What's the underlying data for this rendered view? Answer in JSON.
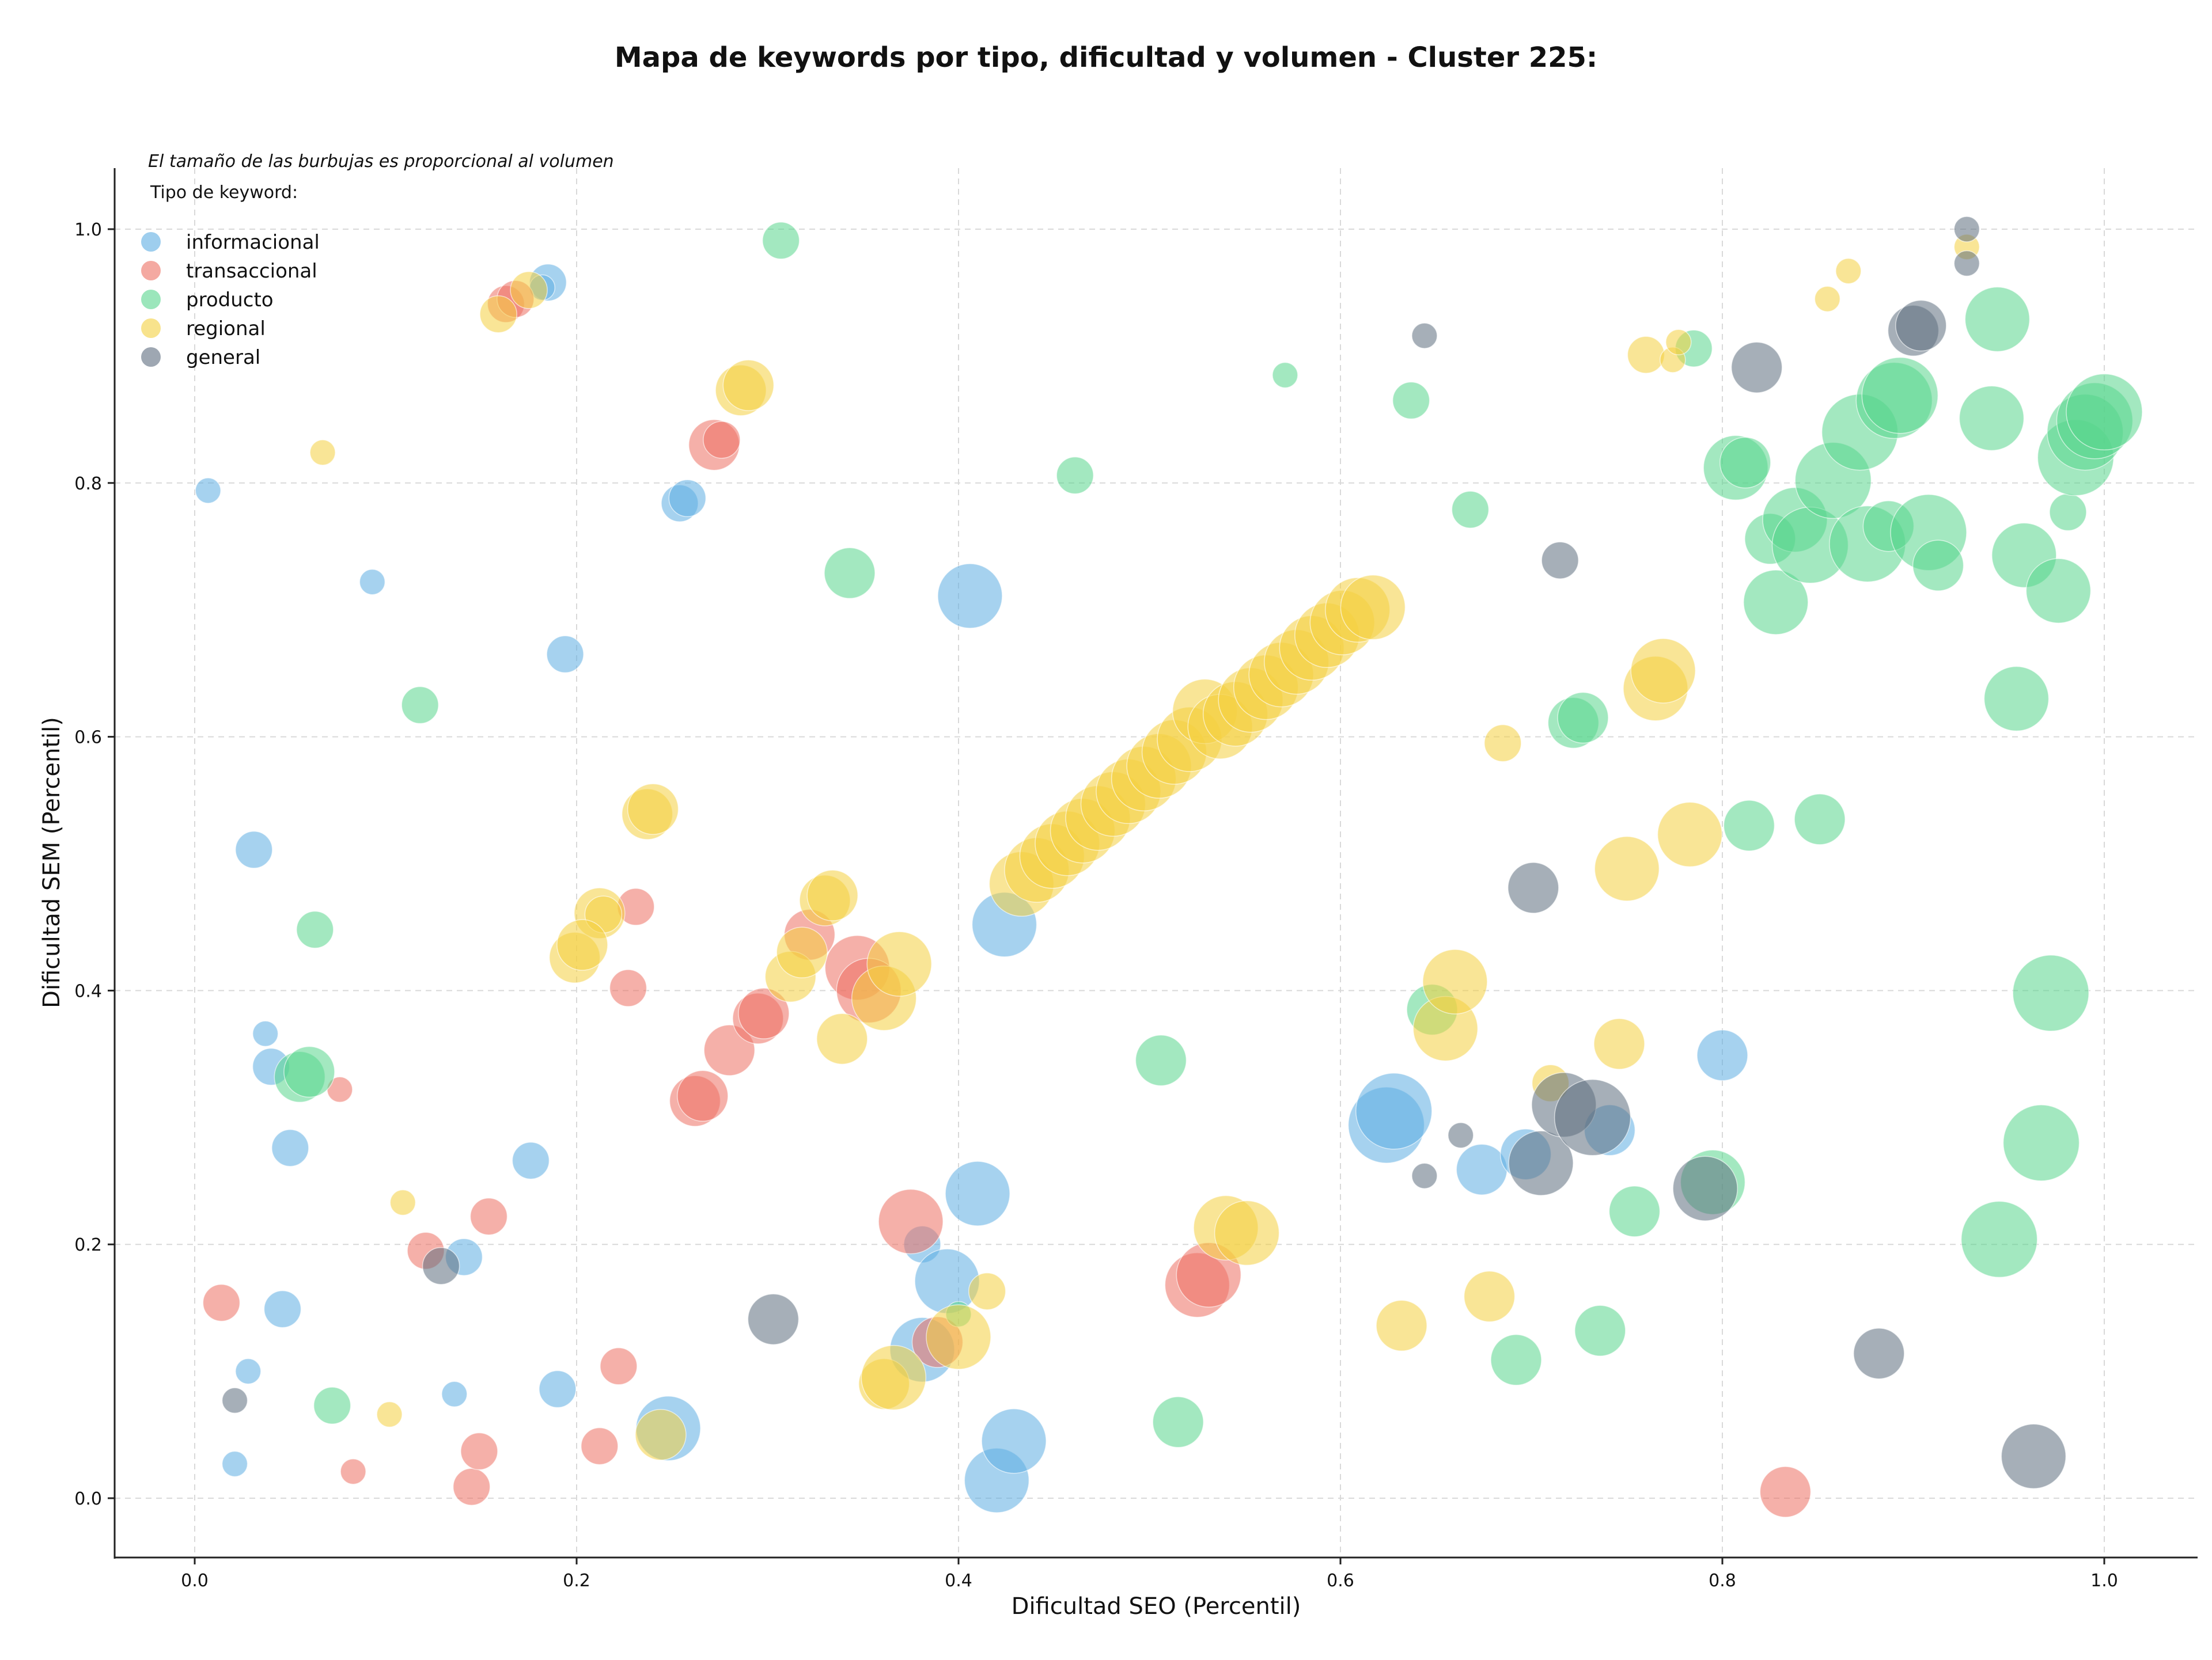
{
  "chart_data": {
    "type": "scatter",
    "title": "Mapa de keywords por tipo, dificultad y volumen - Cluster 225:",
    "xlabel": "Dificultad SEO (Percentil)",
    "ylabel": "Dificultad SEM (Percentil)",
    "xlim": [
      -0.04,
      1.05
    ],
    "ylim": [
      -0.045,
      1.05
    ],
    "xticks": [
      "0.0",
      "0.2",
      "0.4",
      "0.6",
      "0.8",
      "1.0"
    ],
    "yticks": [
      "0.0",
      "0.2",
      "0.4",
      "0.6",
      "0.8",
      "1.0"
    ],
    "grid": true,
    "legend_placement": "top-left",
    "note": "El tamaño de las burbujas es proporcional al volumen",
    "legend_title": "Tipo de keyword:",
    "series": [
      {
        "name": "informacional",
        "color": "#5dade2",
        "points": [
          [
            0.007,
            0.794,
            1
          ],
          [
            0.093,
            0.722,
            1
          ],
          [
            0.185,
            0.958,
            2
          ],
          [
            0.182,
            0.954,
            1
          ],
          [
            0.254,
            0.784,
            2
          ],
          [
            0.258,
            0.788,
            2
          ],
          [
            0.194,
            0.665,
            2
          ],
          [
            0.406,
            0.711,
            4
          ],
          [
            0.031,
            0.511,
            2
          ],
          [
            0.424,
            0.452,
            4
          ],
          [
            0.037,
            0.366,
            1
          ],
          [
            0.04,
            0.34,
            2
          ],
          [
            0.05,
            0.276,
            2
          ],
          [
            0.176,
            0.266,
            2
          ],
          [
            0.141,
            0.19,
            2
          ],
          [
            0.046,
            0.149,
            2
          ],
          [
            0.028,
            0.1,
            1
          ],
          [
            0.021,
            0.027,
            1
          ],
          [
            0.136,
            0.082,
            1
          ],
          [
            0.19,
            0.086,
            2
          ],
          [
            0.248,
            0.055,
            4
          ],
          [
            0.381,
            0.2,
            2
          ],
          [
            0.394,
            0.171,
            4
          ],
          [
            0.41,
            0.24,
            4
          ],
          [
            0.381,
            0.117,
            4
          ],
          [
            0.42,
            0.014,
            4
          ],
          [
            0.429,
            0.045,
            4
          ],
          [
            0.624,
            0.294,
            5
          ],
          [
            0.628,
            0.305,
            5
          ],
          [
            0.674,
            0.259,
            3
          ],
          [
            0.697,
            0.271,
            3
          ],
          [
            0.741,
            0.29,
            3
          ],
          [
            0.8,
            0.349,
            3
          ]
        ]
      },
      {
        "name": "transaccional",
        "color": "#ec7063",
        "points": [
          [
            0.163,
            0.941,
            2
          ],
          [
            0.168,
            0.945,
            2
          ],
          [
            0.272,
            0.83,
            3
          ],
          [
            0.276,
            0.834,
            2
          ],
          [
            0.231,
            0.466,
            2
          ],
          [
            0.227,
            0.402,
            2
          ],
          [
            0.076,
            0.322,
            1
          ],
          [
            0.154,
            0.222,
            2
          ],
          [
            0.121,
            0.195,
            2
          ],
          [
            0.014,
            0.154,
            2
          ],
          [
            0.083,
            0.021,
            1
          ],
          [
            0.145,
            0.009,
            2
          ],
          [
            0.149,
            0.037,
            2
          ],
          [
            0.212,
            0.041,
            2
          ],
          [
            0.222,
            0.104,
            2
          ],
          [
            0.262,
            0.313,
            3
          ],
          [
            0.266,
            0.317,
            3
          ],
          [
            0.28,
            0.353,
            3
          ],
          [
            0.295,
            0.378,
            3
          ],
          [
            0.298,
            0.382,
            3
          ],
          [
            0.322,
            0.444,
            3
          ],
          [
            0.347,
            0.418,
            4
          ],
          [
            0.353,
            0.4,
            4
          ],
          [
            0.375,
            0.218,
            4
          ],
          [
            0.389,
            0.123,
            3
          ],
          [
            0.525,
            0.168,
            4
          ],
          [
            0.531,
            0.176,
            4
          ],
          [
            0.833,
            0.005,
            3
          ]
        ]
      },
      {
        "name": "producto",
        "color": "#58d68d",
        "points": [
          [
            0.307,
            0.991,
            2
          ],
          [
            0.343,
            0.729,
            3
          ],
          [
            0.461,
            0.806,
            2
          ],
          [
            0.571,
            0.885,
            1
          ],
          [
            0.637,
            0.865,
            2
          ],
          [
            0.668,
            0.779,
            2
          ],
          [
            0.118,
            0.625,
            2
          ],
          [
            0.063,
            0.448,
            2
          ],
          [
            0.055,
            0.332,
            3
          ],
          [
            0.06,
            0.336,
            3
          ],
          [
            0.072,
            0.073,
            2
          ],
          [
            0.4,
            0.145,
            1
          ],
          [
            0.506,
            0.345,
            3
          ],
          [
            0.515,
            0.06,
            3
          ],
          [
            0.648,
            0.385,
            3
          ],
          [
            0.692,
            0.109,
            3
          ],
          [
            0.722,
            0.611,
            3
          ],
          [
            0.727,
            0.615,
            3
          ],
          [
            0.736,
            0.132,
            3
          ],
          [
            0.754,
            0.226,
            3
          ],
          [
            0.785,
            0.906,
            2
          ],
          [
            0.795,
            0.249,
            4
          ],
          [
            0.807,
            0.812,
            4
          ],
          [
            0.812,
            0.816,
            3
          ],
          [
            0.814,
            0.53,
            3
          ],
          [
            0.825,
            0.756,
            3
          ],
          [
            0.828,
            0.706,
            4
          ],
          [
            0.838,
            0.771,
            4
          ],
          [
            0.846,
            0.751,
            5
          ],
          [
            0.851,
            0.535,
            3
          ],
          [
            0.858,
            0.802,
            5
          ],
          [
            0.872,
            0.84,
            5
          ],
          [
            0.876,
            0.752,
            5
          ],
          [
            0.887,
            0.766,
            3
          ],
          [
            0.89,
            0.865,
            5
          ],
          [
            0.893,
            0.869,
            5
          ],
          [
            0.908,
            0.761,
            5
          ],
          [
            0.913,
            0.735,
            3
          ],
          [
            0.941,
            0.851,
            4
          ],
          [
            0.944,
            0.929,
            4
          ],
          [
            0.945,
            0.204,
            5
          ],
          [
            0.954,
            0.63,
            4
          ],
          [
            0.958,
            0.743,
            4
          ],
          [
            0.967,
            0.28,
            5
          ],
          [
            0.972,
            0.398,
            5
          ],
          [
            0.976,
            0.715,
            4
          ],
          [
            0.981,
            0.777,
            2
          ],
          [
            0.985,
            0.82,
            5
          ],
          [
            0.99,
            0.84,
            5
          ],
          [
            0.995,
            0.849,
            5
          ],
          [
            1.0,
            0.856,
            5
          ]
        ]
      },
      {
        "name": "regional",
        "color": "#f4d03f",
        "points": [
          [
            0.067,
            0.824,
            1
          ],
          [
            0.159,
            0.933,
            2
          ],
          [
            0.175,
            0.952,
            2
          ],
          [
            0.286,
            0.873,
            3
          ],
          [
            0.29,
            0.877,
            3
          ],
          [
            0.237,
            0.539,
            3
          ],
          [
            0.24,
            0.543,
            3
          ],
          [
            0.212,
            0.461,
            3
          ],
          [
            0.214,
            0.46,
            2
          ],
          [
            0.199,
            0.426,
            3
          ],
          [
            0.203,
            0.436,
            3
          ],
          [
            0.109,
            0.233,
            1
          ],
          [
            0.102,
            0.066,
            1
          ],
          [
            0.244,
            0.05,
            3
          ],
          [
            0.312,
            0.411,
            3
          ],
          [
            0.318,
            0.43,
            3
          ],
          [
            0.33,
            0.471,
            3
          ],
          [
            0.334,
            0.475,
            3
          ],
          [
            0.339,
            0.362,
            3
          ],
          [
            0.361,
            0.394,
            4
          ],
          [
            0.369,
            0.421,
            4
          ],
          [
            0.361,
            0.09,
            3
          ],
          [
            0.366,
            0.095,
            4
          ],
          [
            0.4,
            0.127,
            4
          ],
          [
            0.415,
            0.163,
            2
          ],
          [
            0.433,
            0.484,
            4
          ],
          [
            0.441,
            0.495,
            4
          ],
          [
            0.449,
            0.506,
            4
          ],
          [
            0.457,
            0.516,
            4
          ],
          [
            0.465,
            0.526,
            4
          ],
          [
            0.473,
            0.536,
            4
          ],
          [
            0.481,
            0.547,
            4
          ],
          [
            0.489,
            0.557,
            4
          ],
          [
            0.497,
            0.567,
            4
          ],
          [
            0.505,
            0.577,
            4
          ],
          [
            0.513,
            0.588,
            4
          ],
          [
            0.521,
            0.598,
            4
          ],
          [
            0.529,
            0.62,
            4
          ],
          [
            0.537,
            0.608,
            4
          ],
          [
            0.545,
            0.618,
            4
          ],
          [
            0.553,
            0.629,
            4
          ],
          [
            0.561,
            0.639,
            4
          ],
          [
            0.569,
            0.649,
            4
          ],
          [
            0.577,
            0.659,
            4
          ],
          [
            0.585,
            0.67,
            4
          ],
          [
            0.593,
            0.68,
            4
          ],
          [
            0.601,
            0.69,
            4
          ],
          [
            0.609,
            0.7,
            4
          ],
          [
            0.617,
            0.702,
            4
          ],
          [
            0.54,
            0.213,
            4
          ],
          [
            0.551,
            0.209,
            4
          ],
          [
            0.632,
            0.136,
            3
          ],
          [
            0.655,
            0.37,
            4
          ],
          [
            0.66,
            0.407,
            4
          ],
          [
            0.678,
            0.159,
            3
          ],
          [
            0.685,
            0.595,
            2
          ],
          [
            0.71,
            0.327,
            2
          ],
          [
            0.75,
            0.496,
            4
          ],
          [
            0.746,
            0.358,
            3
          ],
          [
            0.765,
            0.638,
            4
          ],
          [
            0.769,
            0.652,
            4
          ],
          [
            0.783,
            0.523,
            4
          ],
          [
            0.76,
            0.901,
            2
          ],
          [
            0.774,
            0.897,
            1
          ],
          [
            0.777,
            0.911,
            1
          ],
          [
            0.855,
            0.945,
            1
          ],
          [
            0.866,
            0.967,
            1
          ],
          [
            0.928,
            0.986,
            1
          ]
        ]
      },
      {
        "name": "general",
        "color": "#5d6d7e",
        "points": [
          [
            0.021,
            0.077,
            1
          ],
          [
            0.129,
            0.183,
            2
          ],
          [
            0.303,
            0.141,
            3
          ],
          [
            0.644,
            0.916,
            1
          ],
          [
            0.663,
            0.286,
            1
          ],
          [
            0.644,
            0.254,
            1
          ],
          [
            0.701,
            0.481,
            3
          ],
          [
            0.705,
            0.264,
            4
          ],
          [
            0.715,
            0.739,
            2
          ],
          [
            0.717,
            0.31,
            4
          ],
          [
            0.732,
            0.3,
            5
          ],
          [
            0.791,
            0.244,
            4
          ],
          [
            0.818,
            0.891,
            3
          ],
          [
            0.882,
            0.114,
            3
          ],
          [
            0.9,
            0.92,
            3
          ],
          [
            0.904,
            0.924,
            3
          ],
          [
            0.928,
            0.973,
            1
          ],
          [
            0.928,
            1.0,
            1
          ],
          [
            0.963,
            0.033,
            4
          ]
        ]
      }
    ]
  }
}
